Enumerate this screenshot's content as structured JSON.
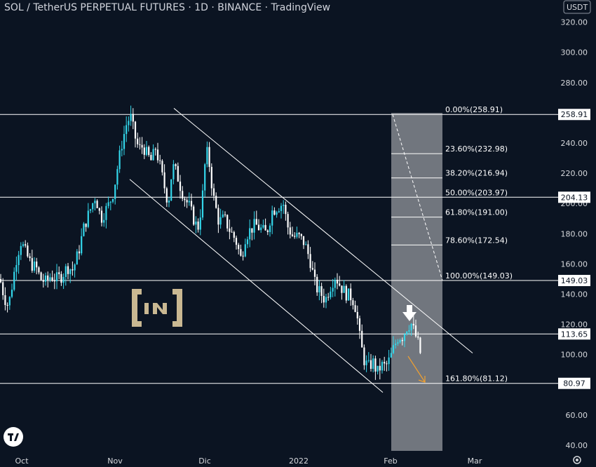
{
  "header": {
    "title": "SOL / TetherUS PERPETUAL FUTURES · 1D · BINANCE · TradingView",
    "currency": "USDT"
  },
  "colors": {
    "background": "#0b1422",
    "candle_up": "#33d6ea",
    "candle_down": "#ffffff",
    "line": "#ffffff",
    "arrow_orange": "#f0a030",
    "logo": "#c9b892",
    "box": "#ffffff"
  },
  "icons": [
    "tradingview-logo-icon",
    "beincrypto-logo-icon",
    "down-arrow-icon",
    "settings-icon"
  ],
  "chart_data": {
    "type": "candlestick",
    "title": "SOL / TetherUS PERPETUAL FUTURES · 1D · BINANCE · TradingView",
    "x": [
      "Oct",
      "Nov",
      "Dic",
      "2022",
      "Feb",
      "Mar"
    ],
    "y_ticks": [
      40,
      60,
      80,
      100,
      120,
      140,
      160,
      180,
      200,
      220,
      240,
      260,
      280,
      300,
      320
    ],
    "ylim": [
      37,
      336
    ],
    "price_path": [
      [
        0,
        150
      ],
      [
        6,
        138
      ],
      [
        12,
        132
      ],
      [
        18,
        148
      ],
      [
        24,
        165
      ],
      [
        30,
        175
      ],
      [
        36,
        168
      ],
      [
        44,
        160
      ],
      [
        52,
        157
      ],
      [
        58,
        150
      ],
      [
        66,
        148
      ],
      [
        72,
        152
      ],
      [
        80,
        150
      ],
      [
        88,
        152
      ],
      [
        96,
        158
      ],
      [
        104,
        156
      ],
      [
        112,
        168
      ],
      [
        120,
        185
      ],
      [
        128,
        195
      ],
      [
        136,
        205
      ],
      [
        144,
        190
      ],
      [
        150,
        195
      ],
      [
        156,
        200
      ],
      [
        162,
        208
      ],
      [
        168,
        225
      ],
      [
        174,
        240
      ],
      [
        180,
        252
      ],
      [
        186,
        258
      ],
      [
        192,
        245
      ],
      [
        198,
        236
      ],
      [
        204,
        238
      ],
      [
        210,
        232
      ],
      [
        216,
        228
      ],
      [
        222,
        237
      ],
      [
        228,
        225
      ],
      [
        234,
        212
      ],
      [
        240,
        200
      ],
      [
        246,
        225
      ],
      [
        252,
        220
      ],
      [
        258,
        210
      ],
      [
        264,
        203
      ],
      [
        270,
        198
      ],
      [
        276,
        190
      ],
      [
        282,
        183
      ],
      [
        288,
        200
      ],
      [
        294,
        236
      ],
      [
        298,
        228
      ],
      [
        304,
        205
      ],
      [
        312,
        188
      ],
      [
        320,
        190
      ],
      [
        328,
        182
      ],
      [
        336,
        176
      ],
      [
        344,
        163
      ],
      [
        350,
        178
      ],
      [
        356,
        182
      ],
      [
        364,
        186
      ],
      [
        372,
        183
      ],
      [
        380,
        180
      ],
      [
        388,
        195
      ],
      [
        396,
        198
      ],
      [
        404,
        200
      ],
      [
        410,
        185
      ],
      [
        418,
        178
      ],
      [
        426,
        178
      ],
      [
        434,
        174
      ],
      [
        442,
        163
      ],
      [
        450,
        145
      ],
      [
        458,
        140
      ],
      [
        464,
        136
      ],
      [
        470,
        144
      ],
      [
        478,
        152
      ],
      [
        486,
        145
      ],
      [
        494,
        140
      ],
      [
        502,
        138
      ],
      [
        508,
        130
      ],
      [
        514,
        108
      ],
      [
        520,
        95
      ],
      [
        526,
        92
      ],
      [
        532,
        95
      ],
      [
        538,
        88
      ],
      [
        544,
        93
      ],
      [
        550,
        92
      ],
      [
        556,
        97
      ],
      [
        562,
        105
      ],
      [
        568,
        112
      ],
      [
        574,
        112
      ],
      [
        580,
        118
      ],
      [
        586,
        121
      ],
      [
        590,
        116
      ],
      [
        596,
        108
      ],
      [
        601,
        98
      ]
    ],
    "horizontal_levels": [
      258.91,
      204.13,
      149.03,
      113.65,
      80.97
    ],
    "price_tags": [
      "258.91",
      "204.13",
      "149.03",
      "113.65",
      "80.97"
    ],
    "fibonacci": [
      {
        "label": "0.00%(258.91)",
        "value": 258.91
      },
      {
        "label": "23.60%(232.98)",
        "value": 232.98
      },
      {
        "label": "38.20%(216.94)",
        "value": 216.94
      },
      {
        "label": "50.00%(203.97)",
        "value": 203.97
      },
      {
        "label": "61.80%(191.00)",
        "value": 191.0
      },
      {
        "label": "78.60%(172.54)",
        "value": 172.54
      },
      {
        "label": "100.00%(149.03)",
        "value": 149.03
      },
      {
        "label": "161.80%(81.12)",
        "value": 81.12
      }
    ],
    "channel": {
      "upper": [
        [
          248,
          263
        ],
        [
          674,
          101
        ]
      ],
      "lower": [
        [
          185,
          216
        ],
        [
          546,
          75
        ]
      ]
    },
    "grid": false,
    "legend": "none"
  }
}
